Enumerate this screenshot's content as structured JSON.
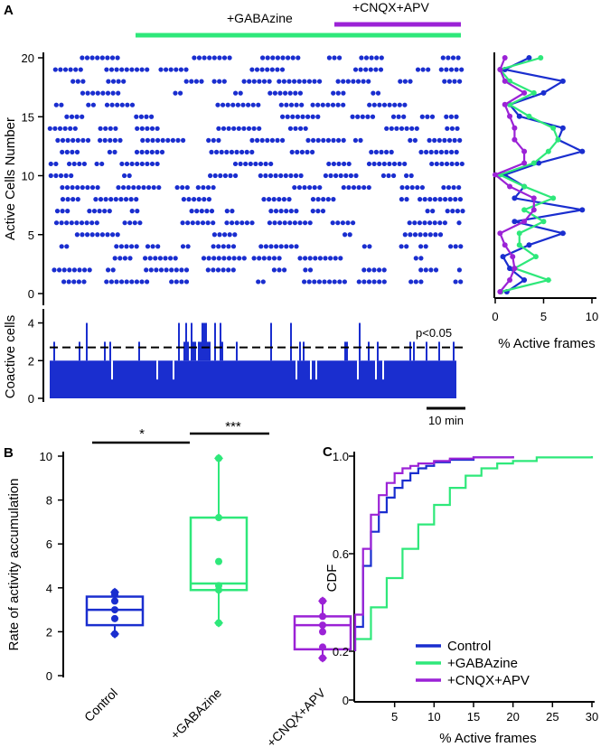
{
  "panels": {
    "a": "A",
    "b": "B",
    "c": "C"
  },
  "colors": {
    "control": "#1a2ecf",
    "gabazine": "#2ee87a",
    "cnqx": "#9b22d6",
    "black": "#000000"
  },
  "treatments": {
    "gabazine_label": "+GABAzine",
    "cnqx_label": "+CNQX+APV"
  },
  "raster": {
    "ylabel": "Active Cells Number",
    "yticks": [
      "0",
      "5",
      "10",
      "15",
      "20"
    ],
    "ymin": 0,
    "ymax": 20,
    "seed": 7
  },
  "coactive": {
    "ylabel": "Coactive cells",
    "yticks": [
      "0",
      "2",
      "4"
    ],
    "ymax": 4.6,
    "threshold": 2.7,
    "threshold_label": "p<0.05",
    "scalebar_label": "10 min"
  },
  "side_profile": {
    "xlabel": "% Active frames",
    "xticks": [
      "0",
      "5",
      "10"
    ],
    "xmax": 10,
    "series": [
      {
        "name": "Control",
        "color": "#1a2ecf",
        "values": [
          1.2,
          3,
          1.5,
          0.8,
          3.5,
          7,
          2,
          9,
          2,
          3,
          1,
          4.5,
          9,
          6.5,
          7,
          2.5,
          1.5,
          5,
          7,
          1,
          3.5
        ]
      },
      {
        "name": "+GABAzine",
        "color": "#2ee87a",
        "values": [
          0.6,
          5.5,
          2,
          4.2,
          2.5,
          2.5,
          5,
          3,
          6,
          3,
          0.5,
          4,
          5.5,
          6.5,
          6,
          3.5,
          1.5,
          4,
          1.5,
          0.5,
          4.7
        ]
      },
      {
        "name": "+CNQX+APV",
        "color": "#9b22d6",
        "values": [
          0.5,
          1.5,
          2,
          1.8,
          1,
          0.5,
          3,
          4,
          4,
          1.5,
          0,
          3,
          3,
          2,
          2,
          1.5,
          1,
          3,
          1,
          0.5,
          1
        ]
      }
    ]
  },
  "chart_data": [
    {
      "type": "box",
      "title": "",
      "ylabel": "Rate of activity accumulation",
      "ylim": [
        0,
        10
      ],
      "yticks": [
        "0",
        "2",
        "4",
        "6",
        "8",
        "10"
      ],
      "categories": [
        "Control",
        "+GABAzine",
        "+CNQX+APV"
      ],
      "boxes": [
        {
          "name": "Control",
          "whisker_low": 1.9,
          "q1": 2.3,
          "median": 3.0,
          "q3": 3.6,
          "whisker_high": 3.8,
          "points": [
            1.9,
            2.6,
            3.0,
            3.4,
            3.7,
            3.8
          ]
        },
        {
          "name": "+GABAzine",
          "whisker_low": 2.4,
          "q1": 3.9,
          "median": 4.2,
          "q3": 7.2,
          "whisker_high": 9.9,
          "points": [
            2.4,
            3.9,
            4.1,
            5.2,
            7.2,
            9.9
          ]
        },
        {
          "name": "+CNQX+APV",
          "whisker_low": 0.8,
          "q1": 1.2,
          "median": 2.3,
          "q3": 2.7,
          "whisker_high": 3.4,
          "points": [
            0.8,
            1.3,
            2.0,
            2.3,
            2.7,
            3.4
          ]
        }
      ],
      "significance": [
        {
          "between": [
            "Control",
            "+GABAzine"
          ],
          "label": "*"
        },
        {
          "between": [
            "+GABAzine",
            "+CNQX+APV"
          ],
          "label": "***"
        }
      ]
    },
    {
      "type": "line",
      "title": "",
      "xlabel": "% Active frames",
      "ylabel": "CDF",
      "xlim": [
        0,
        30
      ],
      "ylim": [
        0,
        1
      ],
      "xticks": [
        "5",
        "10",
        "15",
        "20",
        "25",
        "30"
      ],
      "yticks": [
        "0",
        "0.2",
        "0.6",
        "1.0"
      ],
      "legend_position": "bottom-right",
      "series": [
        {
          "name": "Control",
          "color": "#1a2ecf",
          "x": [
            0,
            1,
            2,
            3,
            4,
            5,
            6,
            7,
            8,
            9,
            10,
            12,
            15,
            20
          ],
          "y": [
            0.3,
            0.55,
            0.69,
            0.77,
            0.83,
            0.87,
            0.9,
            0.93,
            0.95,
            0.96,
            0.975,
            0.985,
            0.995,
            1.0
          ]
        },
        {
          "name": "+GABAzine",
          "color": "#2ee87a",
          "x": [
            0,
            2,
            4,
            6,
            8,
            10,
            12,
            14,
            16,
            18,
            20,
            23,
            30
          ],
          "y": [
            0.25,
            0.38,
            0.5,
            0.62,
            0.72,
            0.8,
            0.87,
            0.92,
            0.95,
            0.97,
            0.98,
            0.995,
            1.0
          ]
        },
        {
          "name": "+CNQX+APV",
          "color": "#9b22d6",
          "x": [
            0,
            1,
            2,
            3,
            4,
            5,
            6,
            7,
            8,
            10,
            12,
            15,
            20
          ],
          "y": [
            0.35,
            0.62,
            0.76,
            0.84,
            0.89,
            0.93,
            0.95,
            0.96,
            0.97,
            0.98,
            0.99,
            0.995,
            1.0
          ]
        }
      ]
    }
  ]
}
